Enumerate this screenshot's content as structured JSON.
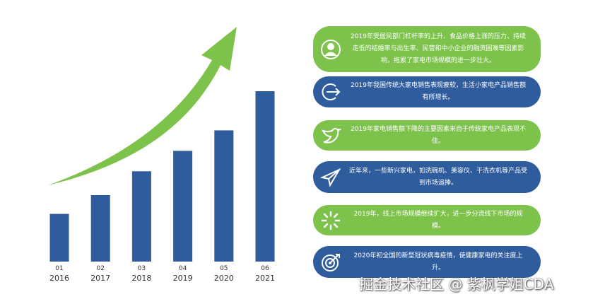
{
  "colors": {
    "green": "#7dc24a",
    "blue": "#2f5c9c",
    "arrow": "#7dc24a",
    "bar": "#2f5c9c"
  },
  "chart_data": {
    "type": "bar",
    "categories": [
      "2016",
      "2017",
      "2018",
      "2019",
      "2020",
      "2021"
    ],
    "index_labels": [
      "01",
      "02",
      "03",
      "04",
      "05",
      "06"
    ],
    "values": [
      28,
      39,
      53,
      65,
      77,
      100
    ],
    "xlabel": "",
    "ylabel": "",
    "grid": false,
    "trend_arrow": true
  },
  "items": [
    {
      "text": "2019年受居民部门杠杆率的上升、食品价格上涨的压力、持续走低的结婚率与出生率、民营和中小企业的融资困难等因素影响，拖累了家电市场规模的进一步壮大。",
      "color": "green",
      "icon": "user-icon"
    },
    {
      "text": "2019年我国传统大家电销售表现疲软，生活小家电产品销售额有所增长。",
      "color": "blue",
      "icon": "exit-arrow-icon"
    },
    {
      "text": "2019年家电销售额下降的主要因素来自于传统家电产品表现不佳。",
      "color": "green",
      "icon": "bird-icon"
    },
    {
      "text": "近年来，一些新兴家电，如洗碗机、美容仪、干洗衣机等产品受到市场追捧。",
      "color": "blue",
      "icon": "paper-plane-icon"
    },
    {
      "text": "2019年，线上市场规模继续扩大，进一步分流线下市场的规模。",
      "color": "green",
      "icon": "loading-icon"
    },
    {
      "text": "2020年初全国的新型冠状病毒疫情，使健康家电的关注度上升。",
      "color": "blue",
      "icon": "target-icon"
    }
  ],
  "watermark": "掘金技术社区 @ 紫枫学姐CDA"
}
